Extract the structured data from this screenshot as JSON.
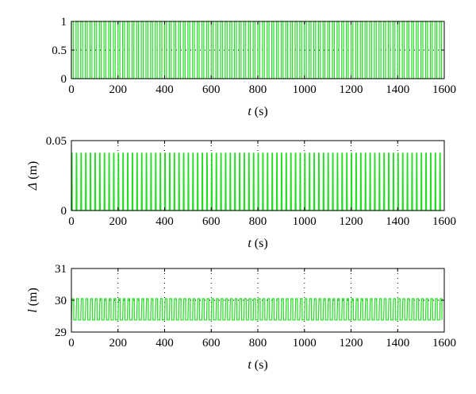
{
  "chart_data": [
    {
      "type": "line",
      "xlabel_var": "t",
      "xlabel_unit": " (s)",
      "ylabel_var": "",
      "ylabel_unit": "",
      "xlim": [
        0,
        1600
      ],
      "ylim": [
        0,
        1
      ],
      "xticks": [
        "0",
        "200",
        "400",
        "600",
        "800",
        "1000",
        "1200",
        "1400",
        "1600"
      ],
      "yticks": [
        "0",
        "0.5",
        "1"
      ],
      "series": [
        {
          "wave": "square",
          "period": 20,
          "low": 0,
          "high": 1,
          "x_end": 1590,
          "color": "#22dd22"
        }
      ],
      "grid": true
    },
    {
      "type": "line",
      "xlabel_var": "t",
      "xlabel_unit": " (s)",
      "ylabel_var": "Δ",
      "ylabel_unit": " (m)",
      "xlim": [
        0,
        1600
      ],
      "ylim": [
        0,
        0.05
      ],
      "xticks": [
        "0",
        "200",
        "400",
        "600",
        "800",
        "1000",
        "1200",
        "1400",
        "1600"
      ],
      "yticks": [
        "0",
        "0.05"
      ],
      "series": [
        {
          "wave": "pulse",
          "period": 20,
          "low": 0,
          "high": 0.041,
          "x_end": 1590,
          "color": "#22dd22"
        }
      ],
      "grid": true
    },
    {
      "type": "line",
      "xlabel_var": "t",
      "xlabel_unit": " (s)",
      "ylabel_var": "l",
      "ylabel_unit": " (m)",
      "xlim": [
        0,
        1600
      ],
      "ylim": [
        29,
        31
      ],
      "xticks": [
        "0",
        "200",
        "400",
        "600",
        "800",
        "1000",
        "1200",
        "1400",
        "1600"
      ],
      "yticks": [
        "29",
        "30",
        "31"
      ],
      "series": [
        {
          "wave": "bounce",
          "period": 20,
          "low": 29.38,
          "high": 30.05,
          "x_end": 1590,
          "color": "#22dd22"
        }
      ],
      "grid": true
    }
  ]
}
